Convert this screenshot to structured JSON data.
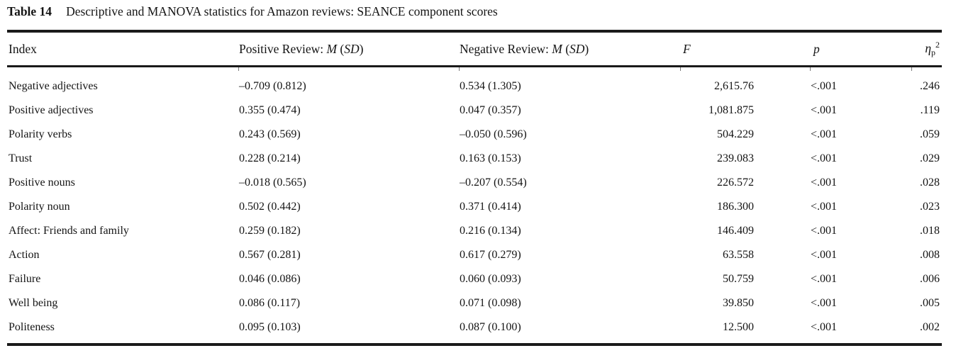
{
  "title": {
    "label": "Table 14",
    "text": "Descriptive and MANOVA statistics for Amazon reviews: SEANCE component scores"
  },
  "header": {
    "index": "Index",
    "positive_prefix": "Positive Review: ",
    "negative_prefix": "Negative Review: ",
    "m": "M",
    "m_sd_sep": " (",
    "sd": "SD",
    "paren_close": ")",
    "f": "F",
    "p": "p",
    "eta": "η",
    "eta_sub": "p",
    "eta_sup": "2"
  },
  "rows": [
    {
      "index": "Negative adjectives",
      "positive": "–0.709 (0.812)",
      "negative": "0.534 (1.305)",
      "f": "2,615.76",
      "p": "<.001",
      "eta_p_sq": ".246"
    },
    {
      "index": "Positive adjectives",
      "positive": "0.355 (0.474)",
      "negative": "0.047 (0.357)",
      "f": "1,081.875",
      "p": "<.001",
      "eta_p_sq": ".119"
    },
    {
      "index": "Polarity verbs",
      "positive": "0.243 (0.569)",
      "negative": "–0.050 (0.596)",
      "f": "504.229",
      "p": "<.001",
      "eta_p_sq": ".059"
    },
    {
      "index": "Trust",
      "positive": "0.228 (0.214)",
      "negative": "0.163 (0.153)",
      "f": "239.083",
      "p": "<.001",
      "eta_p_sq": ".029"
    },
    {
      "index": "Positive nouns",
      "positive": "–0.018 (0.565)",
      "negative": "–0.207 (0.554)",
      "f": "226.572",
      "p": "<.001",
      "eta_p_sq": ".028"
    },
    {
      "index": "Polarity noun",
      "positive": "0.502 (0.442)",
      "negative": "0.371 (0.414)",
      "f": "186.300",
      "p": "<.001",
      "eta_p_sq": ".023"
    },
    {
      "index": "Affect: Friends and family",
      "positive": "0.259 (0.182)",
      "negative": "0.216 (0.134)",
      "f": "146.409",
      "p": "<.001",
      "eta_p_sq": ".018"
    },
    {
      "index": "Action",
      "positive": "0.567 (0.281)",
      "negative": "0.617 (0.279)",
      "f": "63.558",
      "p": "<.001",
      "eta_p_sq": ".008"
    },
    {
      "index": "Failure",
      "positive": "0.046 (0.086)",
      "negative": "0.060 (0.093)",
      "f": "50.759",
      "p": "<.001",
      "eta_p_sq": ".006"
    },
    {
      "index": "Well being",
      "positive": "0.086 (0.117)",
      "negative": "0.071 (0.098)",
      "f": "39.850",
      "p": "<.001",
      "eta_p_sq": ".005"
    },
    {
      "index": "Politeness",
      "positive": "0.095 (0.103)",
      "negative": "0.087 (0.100)",
      "f": "12.500",
      "p": "<.001",
      "eta_p_sq": ".002"
    }
  ],
  "colors": {
    "background": "#ffffff",
    "text": "#141414",
    "rule": "#1a1a1a"
  }
}
